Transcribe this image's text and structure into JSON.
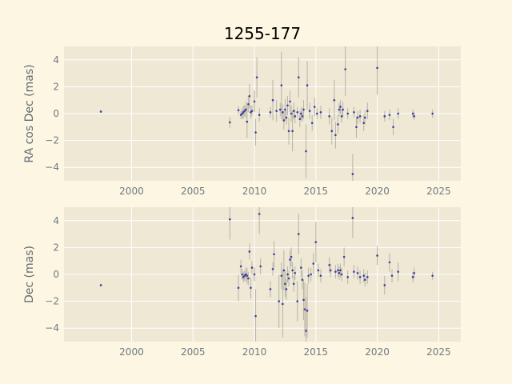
{
  "title": "1255-177",
  "colors": {
    "background": "#fdf6e3",
    "axes_face": "#eee8d5",
    "grid": "#ffffff",
    "points": "#3b3fa0",
    "errorbars": "#b8b2a4"
  },
  "chart_data": [
    {
      "type": "scatter",
      "panel": "top",
      "ylabel": "RA cos Dec (mas)",
      "xlim": [
        1994.5,
        2026.8
      ],
      "ylim": [
        -5.0,
        5.0
      ],
      "xticks": [
        2000,
        2005,
        2010,
        2015,
        2020,
        2025
      ],
      "yticks": [
        -4,
        -2,
        0,
        2,
        4
      ],
      "grid": true,
      "points": [
        {
          "x": 1997.5,
          "y": 0.15,
          "err": 0.1
        },
        {
          "x": 2008.0,
          "y": -0.65,
          "err": 0.4
        },
        {
          "x": 2008.7,
          "y": 0.25,
          "err": 0.3
        },
        {
          "x": 2008.9,
          "y": -0.1,
          "err": 0.3
        },
        {
          "x": 2009.0,
          "y": 0.0,
          "err": 0.4
        },
        {
          "x": 2009.1,
          "y": 0.1,
          "err": 0.5
        },
        {
          "x": 2009.2,
          "y": 0.2,
          "err": 0.4
        },
        {
          "x": 2009.3,
          "y": 0.3,
          "err": 0.6
        },
        {
          "x": 2009.4,
          "y": -0.6,
          "err": 1.2
        },
        {
          "x": 2009.5,
          "y": 0.7,
          "err": 0.6
        },
        {
          "x": 2009.6,
          "y": 1.3,
          "err": 0.9
        },
        {
          "x": 2009.7,
          "y": 0.1,
          "err": 0.5
        },
        {
          "x": 2009.8,
          "y": 0.2,
          "err": 0.4
        },
        {
          "x": 2010.0,
          "y": 0.9,
          "err": 0.8
        },
        {
          "x": 2010.1,
          "y": -1.4,
          "err": 1.0
        },
        {
          "x": 2010.2,
          "y": 2.7,
          "err": 1.5
        },
        {
          "x": 2010.4,
          "y": -0.1,
          "err": 0.5
        },
        {
          "x": 2011.3,
          "y": 0.1,
          "err": 0.4
        },
        {
          "x": 2011.5,
          "y": 1.0,
          "err": 1.5
        },
        {
          "x": 2011.8,
          "y": 0.2,
          "err": 0.8
        },
        {
          "x": 2012.1,
          "y": 0.3,
          "err": 0.5
        },
        {
          "x": 2012.2,
          "y": 2.1,
          "err": 2.5
        },
        {
          "x": 2012.3,
          "y": 0.1,
          "err": 0.6
        },
        {
          "x": 2012.4,
          "y": -0.5,
          "err": 0.7
        },
        {
          "x": 2012.5,
          "y": 0.3,
          "err": 0.8
        },
        {
          "x": 2012.6,
          "y": -0.3,
          "err": 0.5
        },
        {
          "x": 2012.7,
          "y": 0.6,
          "err": 0.7
        },
        {
          "x": 2012.8,
          "y": -1.3,
          "err": 1.0
        },
        {
          "x": 2012.9,
          "y": 0.9,
          "err": 0.8
        },
        {
          "x": 2013.0,
          "y": 0.0,
          "err": 0.6
        },
        {
          "x": 2013.1,
          "y": -1.3,
          "err": 1.5
        },
        {
          "x": 2013.2,
          "y": 0.2,
          "err": 0.6
        },
        {
          "x": 2013.3,
          "y": -0.2,
          "err": 0.5
        },
        {
          "x": 2013.5,
          "y": 0.1,
          "err": 0.4
        },
        {
          "x": 2013.6,
          "y": 2.7,
          "err": 1.5
        },
        {
          "x": 2013.7,
          "y": -0.4,
          "err": 0.6
        },
        {
          "x": 2013.8,
          "y": 0.0,
          "err": 0.5
        },
        {
          "x": 2013.9,
          "y": -0.2,
          "err": 0.4
        },
        {
          "x": 2014.0,
          "y": 0.3,
          "err": 0.7
        },
        {
          "x": 2014.2,
          "y": -2.8,
          "err": 2.0
        },
        {
          "x": 2014.3,
          "y": 2.1,
          "err": 1.8
        },
        {
          "x": 2014.5,
          "y": 0.2,
          "err": 0.6
        },
        {
          "x": 2014.7,
          "y": -0.7,
          "err": 0.6
        },
        {
          "x": 2014.9,
          "y": 0.5,
          "err": 0.7
        },
        {
          "x": 2015.1,
          "y": 0.0,
          "err": 0.4
        },
        {
          "x": 2015.4,
          "y": 0.1,
          "err": 0.5
        },
        {
          "x": 2016.1,
          "y": -0.2,
          "err": 0.6
        },
        {
          "x": 2016.3,
          "y": -1.3,
          "err": 1.0
        },
        {
          "x": 2016.5,
          "y": 1.0,
          "err": 1.5
        },
        {
          "x": 2016.6,
          "y": -1.6,
          "err": 1.0
        },
        {
          "x": 2016.8,
          "y": -0.8,
          "err": 0.7
        },
        {
          "x": 2016.9,
          "y": 0.3,
          "err": 0.5
        },
        {
          "x": 2017.0,
          "y": 0.5,
          "err": 0.5
        },
        {
          "x": 2017.1,
          "y": -0.2,
          "err": 0.5
        },
        {
          "x": 2017.2,
          "y": 0.3,
          "err": 0.6
        },
        {
          "x": 2017.4,
          "y": 3.3,
          "err": 2.0
        },
        {
          "x": 2017.6,
          "y": 0.0,
          "err": 0.4
        },
        {
          "x": 2018.0,
          "y": -4.5,
          "err": 1.5
        },
        {
          "x": 2018.1,
          "y": 0.1,
          "err": 0.4
        },
        {
          "x": 2018.3,
          "y": -1.0,
          "err": 0.8
        },
        {
          "x": 2018.4,
          "y": -0.3,
          "err": 0.5
        },
        {
          "x": 2018.6,
          "y": -0.2,
          "err": 0.5
        },
        {
          "x": 2018.9,
          "y": -0.7,
          "err": 0.6
        },
        {
          "x": 2019.0,
          "y": -0.3,
          "err": 0.5
        },
        {
          "x": 2019.2,
          "y": 0.2,
          "err": 0.6
        },
        {
          "x": 2020.0,
          "y": 3.4,
          "err": 2.0
        },
        {
          "x": 2020.6,
          "y": -0.2,
          "err": 0.4
        },
        {
          "x": 2021.0,
          "y": -0.1,
          "err": 0.4
        },
        {
          "x": 2021.3,
          "y": -1.0,
          "err": 0.6
        },
        {
          "x": 2021.7,
          "y": 0.0,
          "err": 0.4
        },
        {
          "x": 2022.9,
          "y": 0.0,
          "err": 0.3
        },
        {
          "x": 2023.0,
          "y": -0.2,
          "err": 0.3
        },
        {
          "x": 2024.5,
          "y": 0.0,
          "err": 0.3
        }
      ]
    },
    {
      "type": "scatter",
      "panel": "bottom",
      "ylabel": "Dec (mas)",
      "xlim": [
        1994.5,
        2026.8
      ],
      "ylim": [
        -5.0,
        5.0
      ],
      "xticks": [
        2000,
        2005,
        2010,
        2015,
        2020,
        2025
      ],
      "yticks": [
        -4,
        -2,
        0,
        2,
        4
      ],
      "grid": true,
      "points": [
        {
          "x": 1997.5,
          "y": -0.8,
          "err": 0.1
        },
        {
          "x": 2008.0,
          "y": 4.1,
          "err": 1.5
        },
        {
          "x": 2008.7,
          "y": -1.0,
          "err": 1.0
        },
        {
          "x": 2008.9,
          "y": 0.6,
          "err": 0.5
        },
        {
          "x": 2009.0,
          "y": 0.0,
          "err": 0.4
        },
        {
          "x": 2009.1,
          "y": -0.2,
          "err": 0.4
        },
        {
          "x": 2009.2,
          "y": -0.1,
          "err": 0.4
        },
        {
          "x": 2009.3,
          "y": 0.0,
          "err": 0.5
        },
        {
          "x": 2009.4,
          "y": -0.1,
          "err": 0.6
        },
        {
          "x": 2009.5,
          "y": -0.3,
          "err": 0.5
        },
        {
          "x": 2009.6,
          "y": 1.7,
          "err": 0.6
        },
        {
          "x": 2009.7,
          "y": -1.0,
          "err": 0.8
        },
        {
          "x": 2009.8,
          "y": 0.5,
          "err": 0.5
        },
        {
          "x": 2010.0,
          "y": 0.0,
          "err": 0.5
        },
        {
          "x": 2010.1,
          "y": -3.1,
          "err": 2.0
        },
        {
          "x": 2010.4,
          "y": 4.5,
          "err": 1.5
        },
        {
          "x": 2010.5,
          "y": 0.6,
          "err": 0.6
        },
        {
          "x": 2011.3,
          "y": -1.1,
          "err": 0.6
        },
        {
          "x": 2011.5,
          "y": 0.4,
          "err": 0.5
        },
        {
          "x": 2011.6,
          "y": 1.5,
          "err": 1.0
        },
        {
          "x": 2012.0,
          "y": -2.0,
          "err": 2.0
        },
        {
          "x": 2012.2,
          "y": -0.1,
          "err": 1.0
        },
        {
          "x": 2012.3,
          "y": -2.2,
          "err": 2.5
        },
        {
          "x": 2012.4,
          "y": 0.3,
          "err": 1.5
        },
        {
          "x": 2012.5,
          "y": -0.7,
          "err": 1.0
        },
        {
          "x": 2012.6,
          "y": -1.1,
          "err": 0.8
        },
        {
          "x": 2012.7,
          "y": 0.0,
          "err": 0.6
        },
        {
          "x": 2012.8,
          "y": -0.3,
          "err": 0.6
        },
        {
          "x": 2012.9,
          "y": 1.1,
          "err": 0.7
        },
        {
          "x": 2013.0,
          "y": 1.3,
          "err": 0.7
        },
        {
          "x": 2013.1,
          "y": 0.3,
          "err": 0.6
        },
        {
          "x": 2013.2,
          "y": -0.7,
          "err": 0.6
        },
        {
          "x": 2013.3,
          "y": 0.1,
          "err": 0.5
        },
        {
          "x": 2013.5,
          "y": -2.0,
          "err": 1.5
        },
        {
          "x": 2013.6,
          "y": 3.0,
          "err": 1.5
        },
        {
          "x": 2013.8,
          "y": 0.5,
          "err": 0.7
        },
        {
          "x": 2013.9,
          "y": -0.4,
          "err": 0.7
        },
        {
          "x": 2014.0,
          "y": -1.9,
          "err": 1.5
        },
        {
          "x": 2014.1,
          "y": -2.6,
          "err": 2.0
        },
        {
          "x": 2014.2,
          "y": -4.2,
          "err": 2.5
        },
        {
          "x": 2014.3,
          "y": -2.7,
          "err": 2.0
        },
        {
          "x": 2014.4,
          "y": -0.1,
          "err": 0.6
        },
        {
          "x": 2014.6,
          "y": 0.0,
          "err": 0.5
        },
        {
          "x": 2014.8,
          "y": 0.8,
          "err": 0.8
        },
        {
          "x": 2015.0,
          "y": 2.4,
          "err": 1.5
        },
        {
          "x": 2015.2,
          "y": 0.3,
          "err": 0.5
        },
        {
          "x": 2015.4,
          "y": -0.1,
          "err": 0.5
        },
        {
          "x": 2016.1,
          "y": 0.7,
          "err": 0.6
        },
        {
          "x": 2016.2,
          "y": 0.3,
          "err": 0.5
        },
        {
          "x": 2016.6,
          "y": 0.2,
          "err": 0.5
        },
        {
          "x": 2016.8,
          "y": 0.3,
          "err": 0.5
        },
        {
          "x": 2016.9,
          "y": 0.1,
          "err": 0.5
        },
        {
          "x": 2017.0,
          "y": 0.3,
          "err": 0.5
        },
        {
          "x": 2017.1,
          "y": 0.0,
          "err": 0.5
        },
        {
          "x": 2017.3,
          "y": 1.3,
          "err": 0.7
        },
        {
          "x": 2017.6,
          "y": -0.2,
          "err": 0.5
        },
        {
          "x": 2018.0,
          "y": 4.2,
          "err": 1.5
        },
        {
          "x": 2018.1,
          "y": 0.2,
          "err": 0.5
        },
        {
          "x": 2018.4,
          "y": 0.1,
          "err": 0.5
        },
        {
          "x": 2018.6,
          "y": -0.2,
          "err": 0.5
        },
        {
          "x": 2018.9,
          "y": -0.1,
          "err": 0.5
        },
        {
          "x": 2019.0,
          "y": -0.4,
          "err": 0.5
        },
        {
          "x": 2019.2,
          "y": -0.2,
          "err": 0.5
        },
        {
          "x": 2020.0,
          "y": 1.4,
          "err": 0.7
        },
        {
          "x": 2020.6,
          "y": -0.8,
          "err": 0.7
        },
        {
          "x": 2021.0,
          "y": 0.9,
          "err": 0.7
        },
        {
          "x": 2021.2,
          "y": -0.1,
          "err": 0.5
        },
        {
          "x": 2021.7,
          "y": 0.2,
          "err": 0.7
        },
        {
          "x": 2022.9,
          "y": -0.2,
          "err": 0.4
        },
        {
          "x": 2023.0,
          "y": 0.1,
          "err": 0.4
        },
        {
          "x": 2024.5,
          "y": -0.1,
          "err": 0.3
        }
      ]
    }
  ]
}
